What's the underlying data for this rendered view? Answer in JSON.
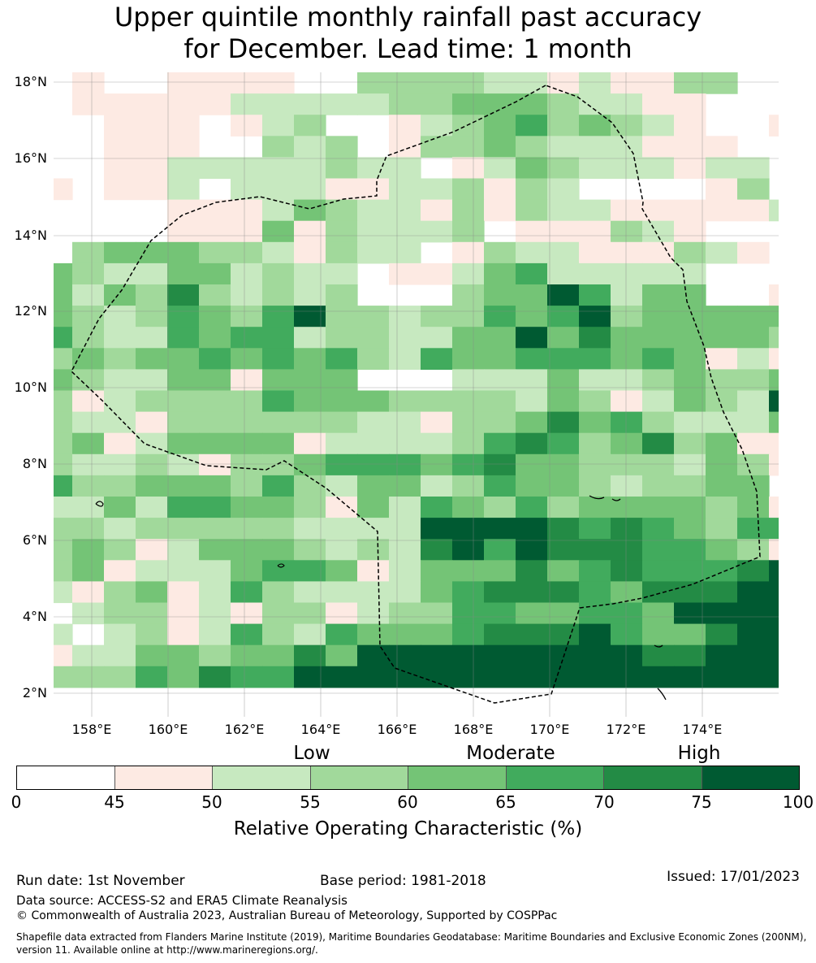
{
  "title": {
    "line1": "Upper quintile monthly rainfall past accuracy",
    "line2": "for December. Lead time: 1 month"
  },
  "map": {
    "lat_labels": [
      "18°N",
      "16°N",
      "14°N",
      "12°N",
      "10°N",
      "8°N",
      "6°N",
      "4°N",
      "2°N"
    ],
    "lon_labels": [
      "158°E",
      "160°E",
      "162°E",
      "164°E",
      "166°E",
      "168°E",
      "170°E",
      "172°E",
      "174°E"
    ],
    "grid": [
      "0100111100333322121133000",
      "0111112222233444322110001",
      "0011101230012345343210010",
      "0011100323013343222111002",
      "0011222223220124322212200",
      "1011202221122313200001301",
      "0000111243221313221111121",
      "0000111413222301113210001",
      "0344433213220132211132100",
      "4322442322011245222220001",
      "4243632323000344752440011",
      "4323543573323354573444443",
      "5322545523322447464444432",
      "3434454545325445554541212",
      "4322441444000222422343347",
      "3123333544433332431243276",
      "3221333333221334645322245",
      "3412444412222356534634111",
      "3223213345554564433324315",
      "5334443532442354432334404",
      "2242554431425435344443416",
      "3323333322227777656543555",
      "3431244432326757666554317",
      "3412224554124446456555677",
      "2134125322224566654666777",
      "0233121331233554455477777",
      "2023125325444566675446777",
      "1224434464777777777667777",
      "3335465577777777777777777"
    ],
    "colors": [
      "#ffffff",
      "#fdeae3",
      "#c7e9c0",
      "#a1d99b",
      "#74c476",
      "#41ab5d",
      "#238b45",
      "#005a32"
    ]
  },
  "categories": {
    "low": "Low",
    "moderate": "Moderate",
    "high": "High"
  },
  "colorbar": {
    "ticks": [
      "0",
      "45",
      "50",
      "55",
      "60",
      "65",
      "70",
      "75",
      "100"
    ],
    "title": "Relative Operating Characteristic (%)"
  },
  "footer": {
    "run_date": "Run date: 1st November",
    "base_period": "Base period: 1981-2018",
    "issued": "Issued: 17/01/2023",
    "data_source": "Data source: ACCESS-S2 and ERA5 Climate Reanalysis",
    "copyright": "© Commonwealth of Australia 2023, Australian Bureau of Meteorology, Supported by COSPPac",
    "shapefile_line1": "Shapefile data extracted from Flanders Marine Institute (2019), Maritime Boundaries Geodatabase: Maritime Boundaries and Exclusive Economic Zones (200NM),",
    "shapefile_line2": "version 11. Available online at http://www.marineregions.org/."
  }
}
